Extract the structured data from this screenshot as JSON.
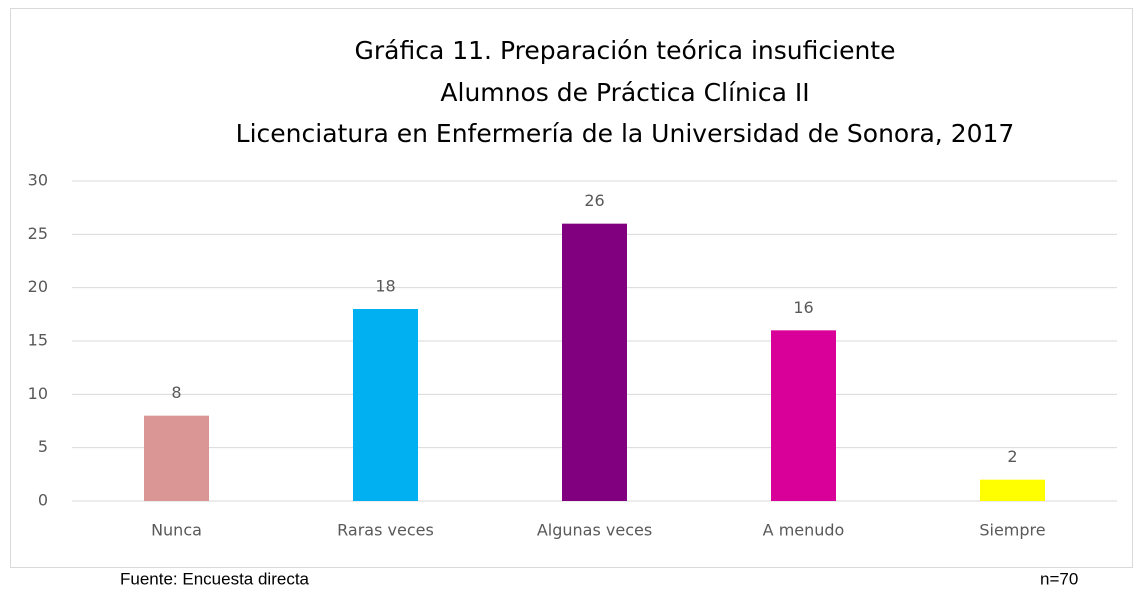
{
  "chart_data": {
    "type": "bar",
    "title": [
      "Gráfica 11. Preparación teórica insuficiente",
      "Alumnos de Práctica Clínica II",
      "Licenciatura en Enfermería de la Universidad de Sonora, 2017"
    ],
    "categories": [
      "Nunca",
      "Raras veces",
      "Algunas veces",
      "A menudo",
      "Siempre"
    ],
    "values": [
      8,
      18,
      26,
      16,
      2
    ],
    "colors": [
      "#d99694",
      "#00b0f0",
      "#800080",
      "#d9009a",
      "#ffff00"
    ],
    "ylim": [
      0,
      30
    ],
    "yticks": [
      0,
      5,
      10,
      15,
      20,
      25,
      30
    ],
    "grid": true,
    "source": "Fuente: Encuesta directa",
    "note": "n=70"
  }
}
